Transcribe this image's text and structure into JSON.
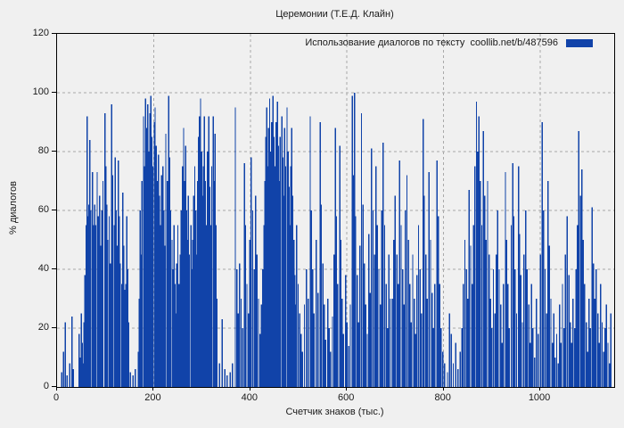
{
  "title": "Церемонии (Т.Е.Д. Клайн)",
  "legend": {
    "label": "Использование диалогов по тексту  coollib.net/b/487596",
    "swatch_color": "#1143a9"
  },
  "axes": {
    "x": {
      "label": "Счетчик знаков (тыс.)",
      "ticks": [
        0,
        200,
        400,
        600,
        800,
        1000
      ],
      "min": 0,
      "max": 1153
    },
    "y": {
      "label": "% диалогов",
      "ticks": [
        0,
        20,
        40,
        60,
        80,
        100,
        120
      ],
      "min": 0,
      "max": 120
    }
  },
  "colors": {
    "bar": "#1143a9",
    "grid": "#a9a9a9",
    "axis": "#000000",
    "background": "#f0f0f0",
    "text": "#1a1a1a"
  },
  "chart_data": {
    "type": "bar",
    "style": "impulses",
    "title": "Церемонии (Т.Е.Д. Клайн)",
    "xlabel": "Счетчик знаков (тыс.)",
    "ylabel": "% диалогов",
    "xlim": [
      0,
      1153
    ],
    "ylim": [
      0,
      120
    ],
    "grid": true,
    "legend_position": "top-right",
    "series_name": "Использование диалогов по тексту  coollib.net/b/487596",
    "points": [
      [
        10,
        5
      ],
      [
        13,
        12
      ],
      [
        17,
        22
      ],
      [
        21,
        4
      ],
      [
        26,
        8
      ],
      [
        31,
        24
      ],
      [
        34,
        6
      ],
      [
        46,
        18
      ],
      [
        48,
        10
      ],
      [
        50,
        25
      ],
      [
        52,
        15
      ],
      [
        54,
        8
      ],
      [
        56,
        22
      ],
      [
        58,
        38
      ],
      [
        60,
        55
      ],
      [
        62,
        92
      ],
      [
        64,
        58
      ],
      [
        66,
        62
      ],
      [
        68,
        84
      ],
      [
        70,
        60
      ],
      [
        73,
        73
      ],
      [
        75,
        55
      ],
      [
        78,
        62
      ],
      [
        80,
        55
      ],
      [
        83,
        73
      ],
      [
        85,
        58
      ],
      [
        88,
        65
      ],
      [
        90,
        48
      ],
      [
        93,
        60
      ],
      [
        95,
        70
      ],
      [
        99,
        93
      ],
      [
        101,
        75
      ],
      [
        103,
        62
      ],
      [
        105,
        50
      ],
      [
        108,
        58
      ],
      [
        110,
        42
      ],
      [
        113,
        96
      ],
      [
        115,
        72
      ],
      [
        118,
        55
      ],
      [
        120,
        78
      ],
      [
        122,
        60
      ],
      [
        125,
        48
      ],
      [
        127,
        77
      ],
      [
        129,
        58
      ],
      [
        131,
        42
      ],
      [
        134,
        35
      ],
      [
        136,
        66
      ],
      [
        138,
        48
      ],
      [
        141,
        33
      ],
      [
        142,
        35
      ],
      [
        144,
        58
      ],
      [
        146,
        40
      ],
      [
        148,
        22
      ],
      [
        152,
        5
      ],
      [
        157,
        4
      ],
      [
        162,
        6
      ],
      [
        168,
        12
      ],
      [
        170,
        30
      ],
      [
        172,
        60
      ],
      [
        174,
        45
      ],
      [
        176,
        70
      ],
      [
        179,
        92
      ],
      [
        181,
        75
      ],
      [
        183,
        98
      ],
      [
        185,
        88
      ],
      [
        188,
        96
      ],
      [
        190,
        80
      ],
      [
        192,
        93
      ],
      [
        194,
        99
      ],
      [
        196,
        85
      ],
      [
        198,
        75
      ],
      [
        201,
        90
      ],
      [
        203,
        95
      ],
      [
        205,
        82
      ],
      [
        207,
        70
      ],
      [
        210,
        79
      ],
      [
        212,
        65
      ],
      [
        214,
        55
      ],
      [
        216,
        72
      ],
      [
        219,
        75
      ],
      [
        221,
        60
      ],
      [
        223,
        48
      ],
      [
        225,
        86
      ],
      [
        228,
        70
      ],
      [
        231,
        99
      ],
      [
        233,
        78
      ],
      [
        235,
        60
      ],
      [
        238,
        50
      ],
      [
        240,
        40
      ],
      [
        242,
        55
      ],
      [
        244,
        35
      ],
      [
        246,
        25
      ],
      [
        248,
        42
      ],
      [
        250,
        55
      ],
      [
        252,
        35
      ],
      [
        255,
        45
      ],
      [
        257,
        60
      ],
      [
        260,
        75
      ],
      [
        262,
        88
      ],
      [
        264,
        70
      ],
      [
        266,
        82
      ],
      [
        268,
        60
      ],
      [
        270,
        50
      ],
      [
        272,
        65
      ],
      [
        274,
        45
      ],
      [
        277,
        55
      ],
      [
        279,
        40
      ],
      [
        281,
        50
      ],
      [
        283,
        65
      ],
      [
        285,
        75
      ],
      [
        287,
        60
      ],
      [
        289,
        45
      ],
      [
        291,
        70
      ],
      [
        293,
        85
      ],
      [
        295,
        92
      ],
      [
        297,
        98
      ],
      [
        299,
        80
      ],
      [
        301,
        65
      ],
      [
        303,
        75
      ],
      [
        305,
        92
      ],
      [
        307,
        70
      ],
      [
        309,
        55
      ],
      [
        311,
        80
      ],
      [
        314,
        92
      ],
      [
        316,
        68
      ],
      [
        318,
        55
      ],
      [
        320,
        75
      ],
      [
        323,
        92
      ],
      [
        325,
        70
      ],
      [
        327,
        86
      ],
      [
        329,
        55
      ],
      [
        331,
        30
      ],
      [
        336,
        8
      ],
      [
        342,
        23
      ],
      [
        347,
        6
      ],
      [
        352,
        4
      ],
      [
        358,
        5
      ],
      [
        363,
        8
      ],
      [
        369,
        95
      ],
      [
        372,
        40
      ],
      [
        375,
        25
      ],
      [
        378,
        42
      ],
      [
        381,
        30
      ],
      [
        384,
        20
      ],
      [
        388,
        76
      ],
      [
        390,
        55
      ],
      [
        393,
        35
      ],
      [
        396,
        25
      ],
      [
        399,
        50
      ],
      [
        402,
        78
      ],
      [
        405,
        60
      ],
      [
        408,
        40
      ],
      [
        411,
        65
      ],
      [
        414,
        45
      ],
      [
        417,
        30
      ],
      [
        420,
        18
      ],
      [
        423,
        28
      ],
      [
        426,
        40
      ],
      [
        428,
        55
      ],
      [
        430,
        70
      ],
      [
        432,
        85
      ],
      [
        434,
        95
      ],
      [
        436,
        75
      ],
      [
        438,
        88
      ],
      [
        440,
        98
      ],
      [
        442,
        80
      ],
      [
        444,
        90
      ],
      [
        447,
        99
      ],
      [
        449,
        85
      ],
      [
        451,
        75
      ],
      [
        453,
        90
      ],
      [
        456,
        97
      ],
      [
        458,
        82
      ],
      [
        460,
        70
      ],
      [
        462,
        85
      ],
      [
        465,
        92
      ],
      [
        467,
        78
      ],
      [
        469,
        65
      ],
      [
        471,
        88
      ],
      [
        473,
        75
      ],
      [
        476,
        95
      ],
      [
        478,
        80
      ],
      [
        480,
        68
      ],
      [
        482,
        55
      ],
      [
        484,
        75
      ],
      [
        486,
        88
      ],
      [
        488,
        65
      ],
      [
        490,
        50
      ],
      [
        492,
        38
      ],
      [
        494,
        28
      ],
      [
        496,
        55
      ],
      [
        499,
        35
      ],
      [
        502,
        25
      ],
      [
        505,
        18
      ],
      [
        508,
        12
      ],
      [
        512,
        28
      ],
      [
        516,
        40
      ],
      [
        520,
        30
      ],
      [
        524,
        92
      ],
      [
        526,
        60
      ],
      [
        529,
        40
      ],
      [
        532,
        25
      ],
      [
        536,
        50
      ],
      [
        540,
        32
      ],
      [
        545,
        90
      ],
      [
        547,
        62
      ],
      [
        550,
        42
      ],
      [
        553,
        28
      ],
      [
        556,
        16
      ],
      [
        560,
        30
      ],
      [
        563,
        20
      ],
      [
        566,
        12
      ],
      [
        570,
        24
      ],
      [
        573,
        45
      ],
      [
        576,
        88
      ],
      [
        578,
        58
      ],
      [
        581,
        35
      ],
      [
        585,
        82
      ],
      [
        587,
        50
      ],
      [
        590,
        30
      ],
      [
        593,
        18
      ],
      [
        597,
        38
      ],
      [
        600,
        22
      ],
      [
        604,
        14
      ],
      [
        607,
        28
      ],
      [
        611,
        99
      ],
      [
        613,
        72
      ],
      [
        616,
        100
      ],
      [
        618,
        58
      ],
      [
        621,
        38
      ],
      [
        624,
        22
      ],
      [
        627,
        48
      ],
      [
        630,
        93
      ],
      [
        633,
        62
      ],
      [
        636,
        42
      ],
      [
        639,
        28
      ],
      [
        642,
        18
      ],
      [
        645,
        52
      ],
      [
        648,
        32
      ],
      [
        651,
        81
      ],
      [
        654,
        60
      ],
      [
        657,
        45
      ],
      [
        660,
        75
      ],
      [
        663,
        55
      ],
      [
        666,
        40
      ],
      [
        669,
        28
      ],
      [
        672,
        60
      ],
      [
        675,
        83
      ],
      [
        678,
        55
      ],
      [
        681,
        35
      ],
      [
        684,
        20
      ],
      [
        687,
        45
      ],
      [
        690,
        30
      ],
      [
        694,
        30
      ],
      [
        697,
        50
      ],
      [
        700,
        65
      ],
      [
        703,
        45
      ],
      [
        706,
        35
      ],
      [
        709,
        77
      ],
      [
        712,
        55
      ],
      [
        715,
        40
      ],
      [
        718,
        28
      ],
      [
        721,
        60
      ],
      [
        724,
        72
      ],
      [
        727,
        50
      ],
      [
        730,
        35
      ],
      [
        733,
        22
      ],
      [
        736,
        45
      ],
      [
        739,
        30
      ],
      [
        742,
        18
      ],
      [
        745,
        38
      ],
      [
        748,
        55
      ],
      [
        751,
        40
      ],
      [
        754,
        25
      ],
      [
        758,
        91
      ],
      [
        760,
        65
      ],
      [
        763,
        45
      ],
      [
        766,
        30
      ],
      [
        770,
        73
      ],
      [
        773,
        50
      ],
      [
        776,
        32
      ],
      [
        779,
        20
      ],
      [
        782,
        35
      ],
      [
        786,
        77
      ],
      [
        789,
        58
      ],
      [
        792,
        35
      ],
      [
        795,
        20
      ],
      [
        798,
        12
      ],
      [
        802,
        8
      ],
      [
        808,
        5
      ],
      [
        812,
        25
      ],
      [
        816,
        18
      ],
      [
        820,
        8
      ],
      [
        825,
        15
      ],
      [
        830,
        6
      ],
      [
        834,
        12
      ],
      [
        838,
        20
      ],
      [
        841,
        35
      ],
      [
        844,
        50
      ],
      [
        847,
        40
      ],
      [
        850,
        30
      ],
      [
        853,
        67
      ],
      [
        856,
        48
      ],
      [
        859,
        35
      ],
      [
        862,
        55
      ],
      [
        865,
        75
      ],
      [
        868,
        97
      ],
      [
        870,
        80
      ],
      [
        873,
        92
      ],
      [
        876,
        70
      ],
      [
        879,
        55
      ],
      [
        882,
        87
      ],
      [
        885,
        65
      ],
      [
        888,
        50
      ],
      [
        891,
        70
      ],
      [
        894,
        45
      ],
      [
        897,
        30
      ],
      [
        900,
        20
      ],
      [
        903,
        40
      ],
      [
        906,
        25
      ],
      [
        909,
        45
      ],
      [
        912,
        60
      ],
      [
        915,
        40
      ],
      [
        918,
        28
      ],
      [
        921,
        15
      ],
      [
        924,
        35
      ],
      [
        928,
        73
      ],
      [
        930,
        50
      ],
      [
        933,
        35
      ],
      [
        936,
        20
      ],
      [
        940,
        55
      ],
      [
        943,
        76
      ],
      [
        945,
        58
      ],
      [
        948,
        40
      ],
      [
        951,
        25
      ],
      [
        955,
        75
      ],
      [
        957,
        52
      ],
      [
        960,
        38
      ],
      [
        963,
        22
      ],
      [
        966,
        45
      ],
      [
        970,
        60
      ],
      [
        973,
        40
      ],
      [
        976,
        28
      ],
      [
        979,
        15
      ],
      [
        982,
        35
      ],
      [
        985,
        20
      ],
      [
        988,
        10
      ],
      [
        992,
        30
      ],
      [
        996,
        18
      ],
      [
        1000,
        45
      ],
      [
        1004,
        90
      ],
      [
        1007,
        60
      ],
      [
        1010,
        40
      ],
      [
        1013,
        25
      ],
      [
        1016,
        70
      ],
      [
        1019,
        48
      ],
      [
        1022,
        30
      ],
      [
        1025,
        15
      ],
      [
        1028,
        25
      ],
      [
        1031,
        10
      ],
      [
        1034,
        18
      ],
      [
        1037,
        8
      ],
      [
        1040,
        28
      ],
      [
        1043,
        15
      ],
      [
        1046,
        35
      ],
      [
        1049,
        20
      ],
      [
        1052,
        45
      ],
      [
        1056,
        58
      ],
      [
        1059,
        38
      ],
      [
        1062,
        22
      ],
      [
        1065,
        15
      ],
      [
        1068,
        30
      ],
      [
        1071,
        20
      ],
      [
        1074,
        40
      ],
      [
        1077,
        55
      ],
      [
        1080,
        87
      ],
      [
        1083,
        65
      ],
      [
        1086,
        74
      ],
      [
        1089,
        50
      ],
      [
        1092,
        35
      ],
      [
        1095,
        22
      ],
      [
        1098,
        12
      ],
      [
        1101,
        30
      ],
      [
        1104,
        20
      ],
      [
        1107,
        61
      ],
      [
        1110,
        42
      ],
      [
        1113,
        30
      ],
      [
        1116,
        40
      ],
      [
        1119,
        25
      ],
      [
        1122,
        15
      ],
      [
        1125,
        35
      ],
      [
        1128,
        22
      ],
      [
        1131,
        12
      ],
      [
        1134,
        20
      ],
      [
        1137,
        28
      ],
      [
        1140,
        15
      ],
      [
        1143,
        8
      ],
      [
        1146,
        25
      ]
    ]
  }
}
